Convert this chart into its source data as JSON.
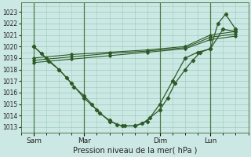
{
  "xlabel": "Pression niveau de la mer( hPa )",
  "background_color": "#cce8e4",
  "grid_color": "#99ccbb",
  "line_color": "#2d5a27",
  "vline_color": "#4a7a44",
  "ylim": [
    1012.5,
    1023.8
  ],
  "yticks": [
    1013,
    1014,
    1015,
    1016,
    1017,
    1018,
    1019,
    1020,
    1021,
    1022,
    1023
  ],
  "xtick_labels": [
    "Sam",
    "Mar",
    "Dim",
    "Lun"
  ],
  "xtick_positions": [
    1,
    3,
    6,
    8
  ],
  "vline_positions": [
    1,
    3,
    6,
    8
  ],
  "xlim": [
    0.5,
    9.5
  ],
  "line1_x": [
    1.0,
    1.3,
    1.6,
    2.0,
    2.3,
    2.6,
    3.0,
    3.3,
    3.6,
    4.0,
    4.3,
    4.6,
    5.0,
    5.3,
    5.6,
    6.0,
    6.3,
    6.6,
    7.0,
    7.3,
    7.6,
    8.0,
    8.3,
    8.6,
    9.0
  ],
  "line1_y": [
    1020.0,
    1019.4,
    1018.7,
    1018.0,
    1017.3,
    1016.5,
    1015.7,
    1015.0,
    1014.2,
    1013.6,
    1013.2,
    1013.1,
    1013.1,
    1013.3,
    1013.8,
    1014.5,
    1015.5,
    1016.8,
    1018.0,
    1018.8,
    1019.5,
    1019.8,
    1022.0,
    1022.8,
    1021.5
  ],
  "line2_x": [
    1.0,
    1.5,
    2.0,
    2.5,
    3.0,
    3.5,
    4.0,
    4.5,
    5.0,
    5.5,
    6.0,
    6.5,
    7.0,
    7.5,
    8.0,
    8.5,
    9.0
  ],
  "line2_y": [
    1020.0,
    1019.0,
    1018.0,
    1016.8,
    1015.5,
    1014.5,
    1013.5,
    1013.1,
    1013.1,
    1013.5,
    1015.0,
    1017.0,
    1019.0,
    1019.5,
    1019.8,
    1021.5,
    1021.3
  ],
  "flat_lines": [
    {
      "x": [
        1.0,
        2.5,
        4.0,
        5.5,
        7.0,
        8.0,
        9.0
      ],
      "y": [
        1019.0,
        1019.3,
        1019.5,
        1019.7,
        1020.0,
        1021.0,
        1021.3
      ]
    },
    {
      "x": [
        1.0,
        2.5,
        4.0,
        5.5,
        7.0,
        8.0,
        9.0
      ],
      "y": [
        1018.8,
        1019.1,
        1019.4,
        1019.6,
        1019.9,
        1020.8,
        1021.1
      ]
    },
    {
      "x": [
        1.0,
        2.5,
        4.0,
        5.5,
        7.0,
        8.0,
        9.0
      ],
      "y": [
        1018.6,
        1018.9,
        1019.2,
        1019.5,
        1019.8,
        1020.6,
        1020.9
      ]
    }
  ]
}
